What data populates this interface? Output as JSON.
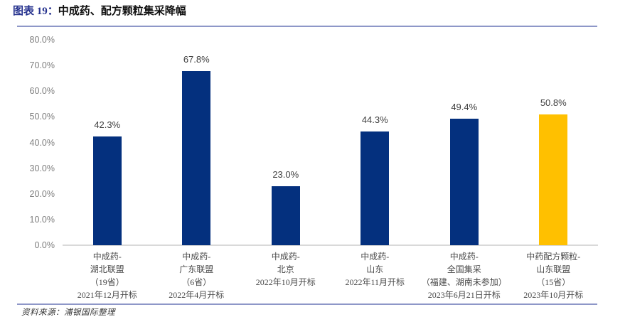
{
  "figure": {
    "label": "图表 19：",
    "title": "中成药、配方颗粒集采降幅",
    "source": "资料来源：浦银国际整理"
  },
  "colors": {
    "navy": "#04307E",
    "gold": "#FFC000",
    "divider": "#8E97C8",
    "axis_line": "#D9D9D9",
    "tick_text": "#7F7F7F",
    "value_text": "#404040",
    "category_text": "#4A4A4A",
    "title_label": "#26328E"
  },
  "chart_data": {
    "type": "bar",
    "title": "中成药、配方颗粒集采降幅",
    "xlabel": "",
    "ylabel": "",
    "ylim": [
      0,
      80
    ],
    "grid": false,
    "legend": "none",
    "yticks": [
      "80.0%",
      "70.0%",
      "60.0%",
      "50.0%",
      "40.0%",
      "30.0%",
      "20.0%",
      "10.0%",
      "0.0%"
    ],
    "ytick_values": [
      80,
      70,
      60,
      50,
      40,
      30,
      20,
      10,
      0
    ],
    "categories": [
      "中成药-湖北联盟（19省）2021年12月开标",
      "中成药-广东联盟（6省）2022年4月开标",
      "中成药-北京 2022年10月开标",
      "中成药-山东 2022年11月开标",
      "中成药-全国集采（福建、湖南未参加）2023年6月21日开标",
      "中药配方颗粒-山东联盟（15省）2023年10月开标"
    ],
    "category_lines": [
      [
        "中成药-",
        "湖北联盟",
        "（19省）",
        "2021年12月开标"
      ],
      [
        "中成药-",
        "广东联盟",
        "（6省）",
        "2022年4月开标"
      ],
      [
        "中成药-",
        "北京",
        "2022年10月开标"
      ],
      [
        "中成药-",
        "山东",
        "2022年11月开标"
      ],
      [
        "中成药-",
        "全国集采",
        "（福建、湖南未参加）",
        "2023年6月21日开标"
      ],
      [
        "中药配方颗粒-",
        "山东联盟",
        "（15省）",
        "2023年10月开标"
      ]
    ],
    "values": [
      42.3,
      67.8,
      23.0,
      44.3,
      49.4,
      50.8
    ],
    "value_labels": [
      "42.3%",
      "67.8%",
      "23.0%",
      "44.3%",
      "49.4%",
      "50.8%"
    ],
    "bar_colors": [
      "#04307E",
      "#04307E",
      "#04307E",
      "#04307E",
      "#04307E",
      "#FFC000"
    ]
  }
}
